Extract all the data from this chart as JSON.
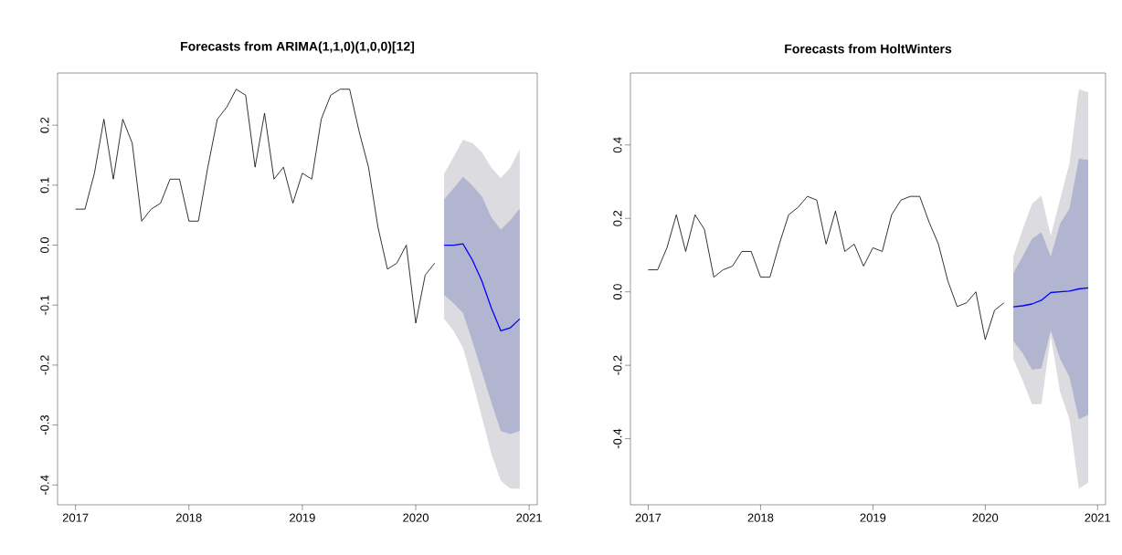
{
  "chart_data": [
    {
      "type": "line",
      "title": "Forecasts from ARIMA(1,1,0)(1,0,0)[12]",
      "xlim": [
        "2016-11-04",
        "2021-01-27"
      ],
      "ylim": [
        -0.433,
        0.287
      ],
      "xticks": [
        "2017",
        "2018",
        "2019",
        "2020",
        "2021"
      ],
      "yticks": [
        -0.4,
        -0.3,
        -0.2,
        -0.1,
        {
          "value": 0,
          "label": "0.0"
        },
        0.1,
        0.2
      ],
      "grid": false,
      "marker": "none",
      "line_style": "solid",
      "series": [
        {
          "color": "#000000",
          "x": [
            "2017-01",
            "2017-02",
            "2017-03",
            "2017-04",
            "2017-05",
            "2017-06",
            "2017-07",
            "2017-08",
            "2017-09",
            "2017-10",
            "2017-11",
            "2017-12",
            "2018-01",
            "2018-02",
            "2018-03",
            "2018-04",
            "2018-05",
            "2018-06",
            "2018-07",
            "2018-08",
            "2018-09",
            "2018-10",
            "2018-11",
            "2018-12",
            "2019-01",
            "2019-02",
            "2019-03",
            "2019-04",
            "2019-05",
            "2019-06",
            "2019-07",
            "2019-08",
            "2019-09",
            "2019-10",
            "2019-11",
            "2019-12",
            "2020-01",
            "2020-02",
            "2020-03"
          ],
          "values": [
            0.06,
            0.06,
            0.12,
            0.21,
            0.11,
            0.21,
            0.17,
            0.04,
            0.06,
            0.07,
            0.11,
            0.11,
            0.04,
            0.04,
            0.13,
            0.21,
            0.23,
            0.26,
            0.25,
            0.13,
            0.22,
            0.11,
            0.13,
            0.07,
            0.12,
            0.11,
            0.21,
            0.25,
            0.26,
            0.26,
            0.19,
            0.13,
            0.03,
            -0.04,
            -0.03,
            0.0,
            -0.13,
            -0.05,
            -0.03
          ]
        },
        {
          "color": "#dbdbe0",
          "x": [
            "2020-04",
            "2020-05",
            "2020-06",
            "2020-07",
            "2020-08",
            "2020-09",
            "2020-10",
            "2020-11",
            "2020-12"
          ],
          "values": [
            null,
            null,
            null,
            null,
            null,
            null,
            null,
            null,
            null
          ],
          "lower": [
            -0.123,
            -0.143,
            -0.171,
            -0.227,
            -0.287,
            -0.348,
            -0.393,
            -0.406,
            -0.406
          ],
          "upper": [
            0.119,
            0.147,
            0.176,
            0.17,
            0.155,
            0.129,
            0.112,
            0.129,
            0.16
          ]
        },
        {
          "color": "#b1b5d0",
          "x": [
            "2020-04",
            "2020-05",
            "2020-06",
            "2020-07",
            "2020-08",
            "2020-09",
            "2020-10",
            "2020-11",
            "2020-12"
          ],
          "values": [
            null,
            null,
            null,
            null,
            null,
            null,
            null,
            null,
            null
          ],
          "lower": [
            -0.083,
            -0.097,
            -0.113,
            -0.161,
            -0.212,
            -0.262,
            -0.31,
            -0.315,
            -0.31
          ],
          "upper": [
            0.076,
            0.095,
            0.114,
            0.099,
            0.081,
            0.046,
            0.026,
            0.041,
            0.061
          ]
        },
        {
          "color": "#0000ff",
          "x": [
            "2020-04",
            "2020-05",
            "2020-06",
            "2020-07",
            "2020-08",
            "2020-09",
            "2020-10",
            "2020-11",
            "2020-12"
          ],
          "values": [
            0.0,
            0.0,
            0.002,
            -0.025,
            -0.06,
            -0.105,
            -0.143,
            -0.138,
            -0.123
          ]
        }
      ]
    },
    {
      "type": "line",
      "title": "Forecasts from HoltWinters",
      "xlim": [
        "2016-11-04",
        "2021-01-27"
      ],
      "ylim": [
        -0.58,
        0.596
      ],
      "xticks": [
        "2017",
        "2018",
        "2019",
        "2020",
        "2021"
      ],
      "yticks": [
        -0.4,
        -0.2,
        {
          "value": 0,
          "label": "0.0"
        },
        0.2,
        0.4
      ],
      "grid": false,
      "marker": "none",
      "line_style": "solid",
      "series": [
        {
          "color": "#000000",
          "x": [
            "2017-01",
            "2017-02",
            "2017-03",
            "2017-04",
            "2017-05",
            "2017-06",
            "2017-07",
            "2017-08",
            "2017-09",
            "2017-10",
            "2017-11",
            "2017-12",
            "2018-01",
            "2018-02",
            "2018-03",
            "2018-04",
            "2018-05",
            "2018-06",
            "2018-07",
            "2018-08",
            "2018-09",
            "2018-10",
            "2018-11",
            "2018-12",
            "2019-01",
            "2019-02",
            "2019-03",
            "2019-04",
            "2019-05",
            "2019-06",
            "2019-07",
            "2019-08",
            "2019-09",
            "2019-10",
            "2019-11",
            "2019-12",
            "2020-01",
            "2020-02",
            "2020-03"
          ],
          "values": [
            0.06,
            0.06,
            0.12,
            0.21,
            0.11,
            0.21,
            0.17,
            0.04,
            0.06,
            0.07,
            0.11,
            0.11,
            0.04,
            0.04,
            0.13,
            0.21,
            0.23,
            0.26,
            0.25,
            0.13,
            0.22,
            0.11,
            0.13,
            0.07,
            0.12,
            0.11,
            0.21,
            0.25,
            0.26,
            0.26,
            0.19,
            0.13,
            0.03,
            -0.04,
            -0.03,
            0.0,
            -0.13,
            -0.05,
            -0.03
          ]
        },
        {
          "color": "#dbdbe0",
          "x": [
            "2020-04",
            "2020-05",
            "2020-06",
            "2020-07",
            "2020-08",
            "2020-09",
            "2020-10",
            "2020-11",
            "2020-12"
          ],
          "values": [
            null,
            null,
            null,
            null,
            null,
            null,
            null,
            null,
            null
          ],
          "lower": [
            -0.183,
            -0.241,
            -0.306,
            -0.306,
            -0.12,
            -0.273,
            -0.347,
            -0.536,
            -0.52
          ],
          "upper": [
            0.096,
            0.17,
            0.24,
            0.262,
            0.153,
            0.252,
            0.35,
            0.552,
            0.544
          ]
        },
        {
          "color": "#b1b5d0",
          "x": [
            "2020-04",
            "2020-05",
            "2020-06",
            "2020-07",
            "2020-08",
            "2020-09",
            "2020-10",
            "2020-11",
            "2020-12"
          ],
          "values": [
            null,
            null,
            null,
            null,
            null,
            null,
            null,
            null,
            null
          ],
          "lower": [
            -0.134,
            -0.167,
            -0.212,
            -0.208,
            -0.105,
            -0.183,
            -0.232,
            -0.347,
            -0.335
          ],
          "upper": [
            0.051,
            0.096,
            0.145,
            0.162,
            0.096,
            0.186,
            0.227,
            0.363,
            0.359
          ]
        },
        {
          "color": "#0000ff",
          "x": [
            "2020-04",
            "2020-05",
            "2020-06",
            "2020-07",
            "2020-08",
            "2020-09",
            "2020-10",
            "2020-11",
            "2020-12"
          ],
          "values": [
            -0.041,
            -0.038,
            -0.033,
            -0.023,
            -0.002,
            0.0,
            0.002,
            0.008,
            0.011
          ]
        }
      ]
    }
  ]
}
